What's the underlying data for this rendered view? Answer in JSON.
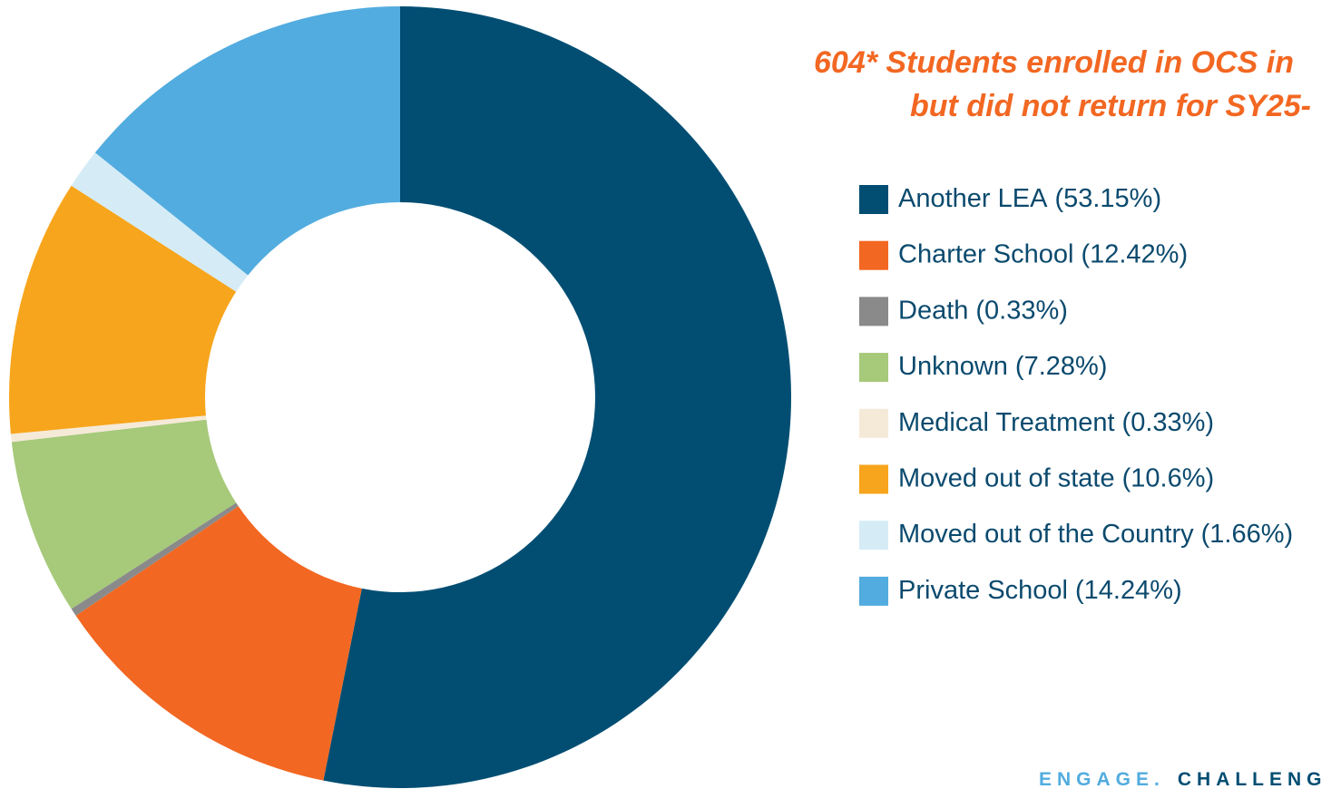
{
  "chart_data": {
    "type": "donut",
    "title": [
      "604* Students enrolled in OCS in",
      "but did not return for SY25-"
    ],
    "categories": [
      "Another LEA",
      "Charter School",
      "Death",
      "Unknown",
      "Medical Treatment",
      "Moved out of state",
      "Moved out of the Country",
      "Private School"
    ],
    "values": [
      53.15,
      12.42,
      0.33,
      7.28,
      0.33,
      10.6,
      1.66,
      14.24
    ],
    "value_labels": [
      "(53.15%)",
      "(12.42%)",
      "(0.33%)",
      "(7.28%)",
      "(0.33%)",
      "(10.6%)",
      "(1.66%)",
      "(14.24%)"
    ],
    "colors": [
      "#024e73",
      "#f26722",
      "#8a8a8a",
      "#a6c97a",
      "#f5ead8",
      "#f7a51c",
      "#d5ecf6",
      "#52acdf"
    ],
    "legend": "right",
    "footer": [
      "ENGAGE.",
      "CHALLENG"
    ]
  }
}
